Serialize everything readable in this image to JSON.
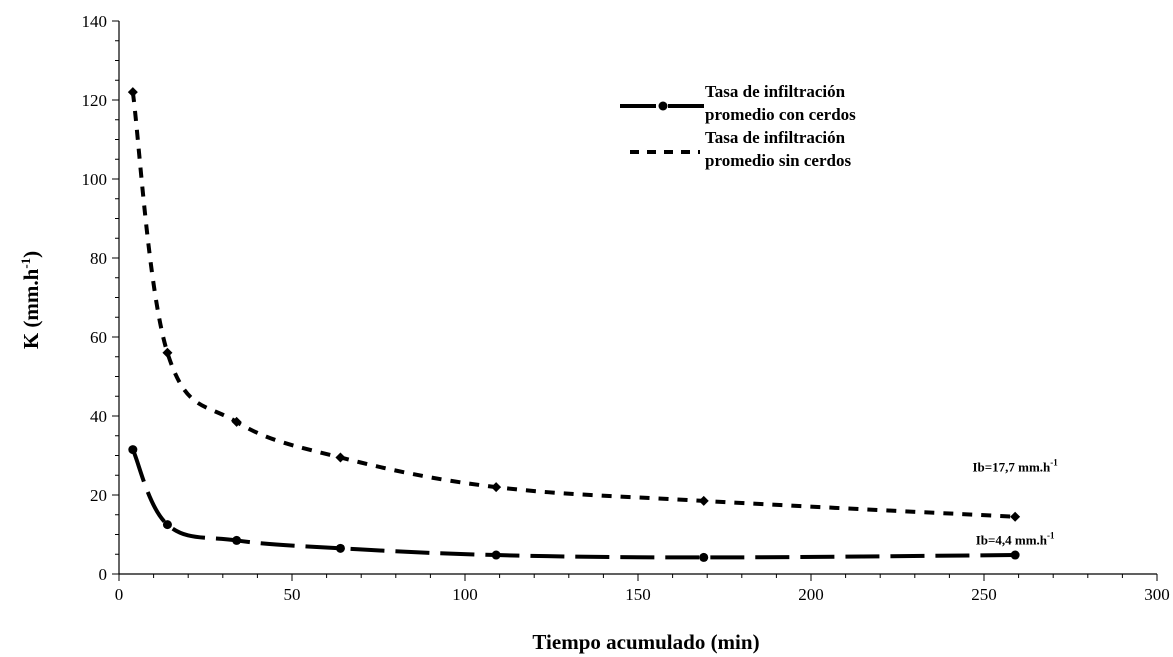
{
  "chart_data": {
    "type": "line",
    "xlabel": "Tiempo acumulado (min)",
    "ylabel_main": "K (mm.h",
    "ylabel_sup": "-1",
    "ylabel_end": ")",
    "xlim": [
      0,
      300
    ],
    "ylim": [
      0,
      140
    ],
    "xticks": [
      0,
      50,
      100,
      150,
      200,
      250,
      300
    ],
    "yticks": [
      0,
      20,
      40,
      60,
      80,
      100,
      120,
      140
    ],
    "grid": false,
    "legend_position": "top-right",
    "series": [
      {
        "key": "con",
        "legend_line1": "Tasa de infiltración",
        "legend_line2": "promedio con cerdos",
        "marker": "circle",
        "style": "long-dash",
        "color": "#000000",
        "x": [
          4,
          14,
          34,
          64,
          109,
          169,
          259
        ],
        "y": [
          31.5,
          12.5,
          8.5,
          6.5,
          4.8,
          4.2,
          4.8
        ]
      },
      {
        "key": "sin",
        "legend_line1": "Tasa de infiltración",
        "legend_line2": "promedio sin cerdos",
        "marker": "diamond",
        "style": "short-dash",
        "color": "#000000",
        "x": [
          4,
          14,
          34,
          64,
          109,
          169,
          259
        ],
        "y": [
          122,
          56,
          38.5,
          29.5,
          22,
          18.5,
          14.5
        ]
      }
    ],
    "annotations": [
      {
        "key": "sin",
        "main": "Ib=17,7 mm.h",
        "sup": "-1",
        "x": 259,
        "y": 26
      },
      {
        "key": "con",
        "main": "Ib=4,4 mm.h",
        "sup": "-1",
        "x": 259,
        "y": 7.5
      }
    ]
  }
}
